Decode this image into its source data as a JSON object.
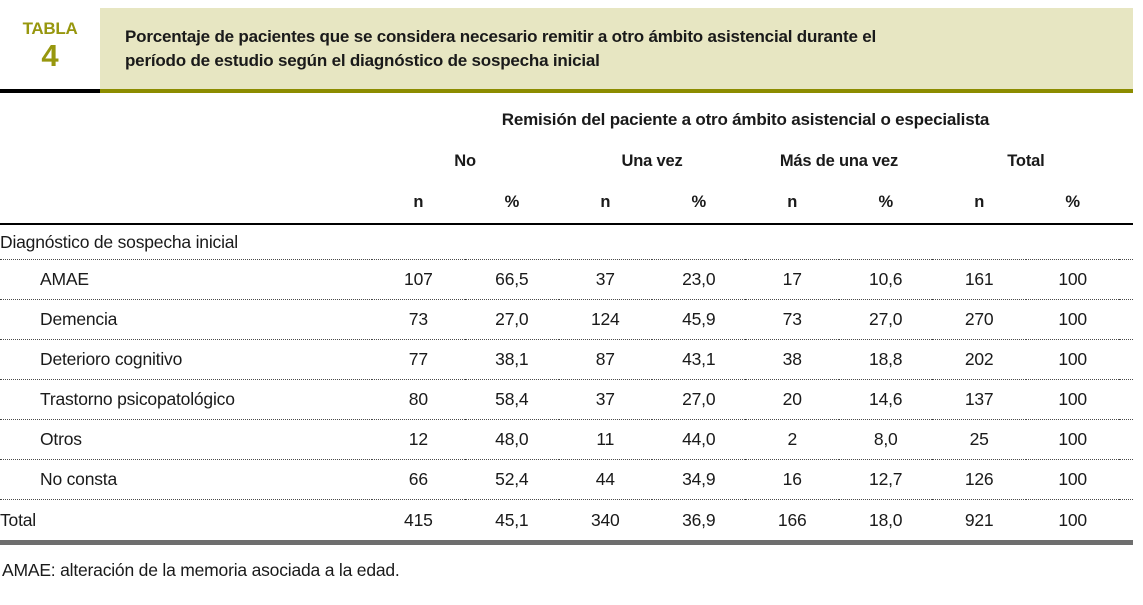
{
  "colors": {
    "accent_olive_text": "#97970e",
    "title_box_bg": "#e7e6c2",
    "title_box_border": "#8c8c00",
    "badge_rule": "#000000",
    "subheader_rule": "#000000",
    "row_dotted_rule": "#4a4a4a",
    "bottom_rule_gray": "#6e6e6e"
  },
  "header": {
    "badge_label": "TABLA",
    "badge_number": "4",
    "title": "Porcentaje de pacientes que se considera necesario remitir a otro ámbito asistencial durante el período de estudio según el diagnóstico de sospecha inicial"
  },
  "table": {
    "span_header": "Remisión del paciente a otro ámbito asistencial o especialista",
    "group_headers": [
      "No",
      "Una vez",
      "Más de una vez",
      "Total"
    ],
    "subheaders": [
      "n",
      "%",
      "n",
      "%",
      "n",
      "%",
      "n",
      "%"
    ],
    "section_label": "Diagnóstico de sospecha inicial",
    "rows": [
      {
        "label": "AMAE",
        "values": [
          "107",
          "66,5",
          "37",
          "23,0",
          "17",
          "10,6",
          "161",
          "100"
        ]
      },
      {
        "label": "Demencia",
        "values": [
          "73",
          "27,0",
          "124",
          "45,9",
          "73",
          "27,0",
          "270",
          "100"
        ]
      },
      {
        "label": "Deterioro cognitivo",
        "values": [
          "77",
          "38,1",
          "87",
          "43,1",
          "38",
          "18,8",
          "202",
          "100"
        ]
      },
      {
        "label": "Trastorno psicopatológico",
        "values": [
          "80",
          "58,4",
          "37",
          "27,0",
          "20",
          "14,6",
          "137",
          "100"
        ]
      },
      {
        "label": "Otros",
        "values": [
          "12",
          "48,0",
          "11",
          "44,0",
          "2",
          "8,0",
          "25",
          "100"
        ]
      },
      {
        "label": "No consta",
        "values": [
          "66",
          "52,4",
          "44",
          "34,9",
          "16",
          "12,7",
          "126",
          "100"
        ]
      }
    ],
    "total_row": {
      "label": "Total",
      "values": [
        "415",
        "45,1",
        "340",
        "36,9",
        "166",
        "18,0",
        "921",
        "100"
      ]
    }
  },
  "footnote": "AMAE: alteración de la memoria asociada a la edad."
}
